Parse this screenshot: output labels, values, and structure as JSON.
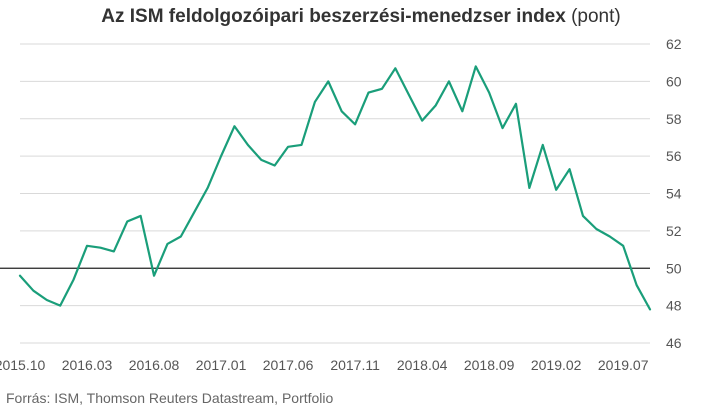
{
  "title": {
    "main": "Az ISM feldolgozóipari beszerzési-menedzser index",
    "unit": "(pont)"
  },
  "source": "Forrás: ISM, Thomson Reuters Datastream, Portfolio",
  "colors": {
    "line": "#1a9e7a",
    "grid": "#d9d9d9",
    "reference": "#222222",
    "text": "#555555"
  },
  "chart_data": {
    "type": "line",
    "title": "Az ISM feldolgozóipari beszerzési-menedzser index (pont)",
    "xlabel": "",
    "ylabel": "",
    "ylim": [
      46,
      62
    ],
    "yticks": [
      46,
      48,
      50,
      52,
      54,
      56,
      58,
      60,
      62
    ],
    "y_axis_side": "right",
    "grid": "horizontal",
    "reference_line": 50,
    "x_ticks": [
      "2015.10",
      "2016.03",
      "2016.08",
      "2017.01",
      "2017.06",
      "2017.11",
      "2018.04",
      "2018.09",
      "2019.02",
      "2019.07"
    ],
    "series": [
      {
        "x": [
          "2015.10",
          "2015.11",
          "2015.12",
          "2016.01",
          "2016.02",
          "2016.03",
          "2016.04",
          "2016.05",
          "2016.06",
          "2016.07",
          "2016.08",
          "2016.09",
          "2016.10",
          "2016.11",
          "2016.12",
          "2017.01",
          "2017.02",
          "2017.03",
          "2017.04",
          "2017.05",
          "2017.06",
          "2017.07",
          "2017.08",
          "2017.09",
          "2017.10",
          "2017.11",
          "2017.12",
          "2018.01",
          "2018.02",
          "2018.03",
          "2018.04",
          "2018.05",
          "2018.06",
          "2018.07",
          "2018.08",
          "2018.09",
          "2018.10",
          "2018.11",
          "2018.12",
          "2019.01",
          "2019.02",
          "2019.03",
          "2019.04",
          "2019.05",
          "2019.06",
          "2019.07",
          "2019.08",
          "2019.09"
        ],
        "values": [
          49.6,
          48.8,
          48.3,
          48.0,
          49.4,
          51.2,
          51.1,
          50.9,
          52.5,
          52.8,
          49.6,
          51.3,
          51.7,
          53.0,
          54.3,
          56.0,
          57.6,
          56.6,
          55.8,
          55.5,
          56.5,
          56.6,
          58.9,
          60.0,
          58.4,
          57.7,
          59.4,
          59.6,
          60.7,
          59.3,
          57.9,
          58.7,
          60.0,
          58.4,
          60.8,
          59.4,
          57.5,
          58.8,
          54.3,
          56.6,
          54.2,
          55.3,
          52.8,
          52.1,
          51.7,
          51.2,
          49.1,
          47.8
        ]
      }
    ]
  }
}
